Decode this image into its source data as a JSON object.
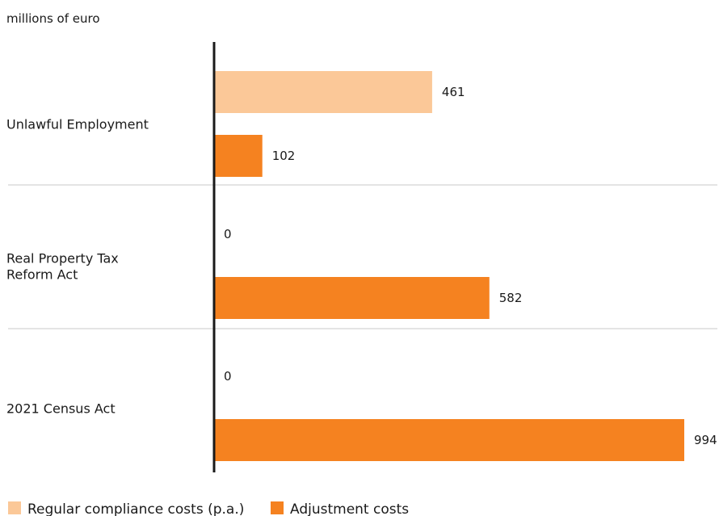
{
  "chart_data": {
    "type": "bar",
    "orientation": "horizontal",
    "unit_label": "millions of euro",
    "categories": [
      [
        "Unlawful Employment"
      ],
      [
        "Real Property Tax",
        "Reform Act"
      ],
      [
        "2021 Census Act"
      ]
    ],
    "series": [
      {
        "name": "Regular compliance costs (p.a.)",
        "color": "#fbc898",
        "values": [
          461,
          0,
          0
        ]
      },
      {
        "name": "Adjustment costs",
        "color": "#f58220",
        "values": [
          102,
          582,
          994
        ]
      }
    ],
    "xlim": [
      0,
      994
    ],
    "legend_position": "bottom-left",
    "grid": false
  }
}
